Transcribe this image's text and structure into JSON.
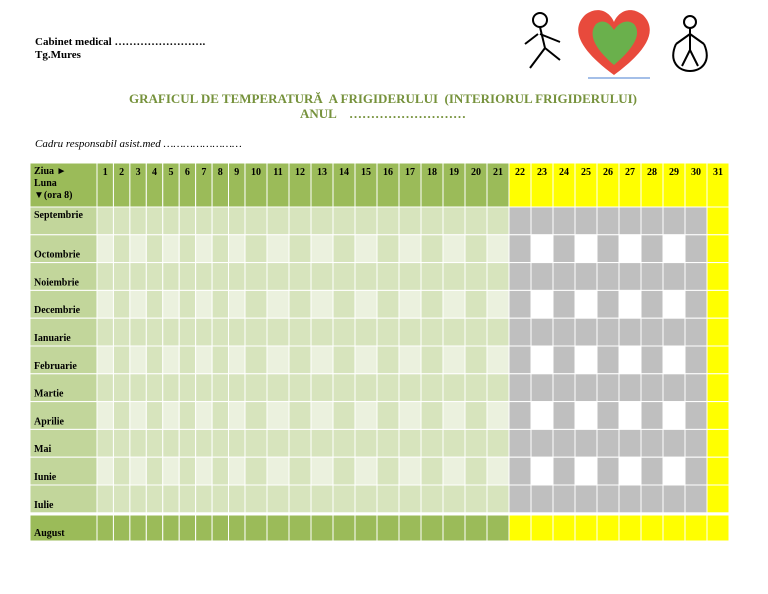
{
  "header": {
    "clinic": "Cabinet medical …………………….",
    "city": "Tg.Mures"
  },
  "title": "GRAFICUL DE TEMPERATURĂ  A FRIGIDERULUI  (INTERIORUL FRIGIDERULUI)",
  "year": "ANUL    ………………………",
  "responsible": "Cadru responsabil asist.med ……………………",
  "table": {
    "corner": [
      "Ziua ►",
      "Luna",
      "▼(ora 8)"
    ],
    "days": [
      1,
      2,
      3,
      4,
      5,
      6,
      7,
      8,
      9,
      10,
      11,
      12,
      13,
      14,
      15,
      16,
      17,
      18,
      19,
      20,
      21,
      22,
      23,
      24,
      25,
      26,
      27,
      28,
      29,
      30,
      31
    ],
    "months": [
      "Septembrie",
      "Octombrie",
      "Noiembrie",
      "Decembrie",
      "Ianuarie",
      "Februarie",
      "Martie",
      "Aprilie",
      "Mai",
      "Iunie",
      "Iulie",
      "August"
    ]
  }
}
